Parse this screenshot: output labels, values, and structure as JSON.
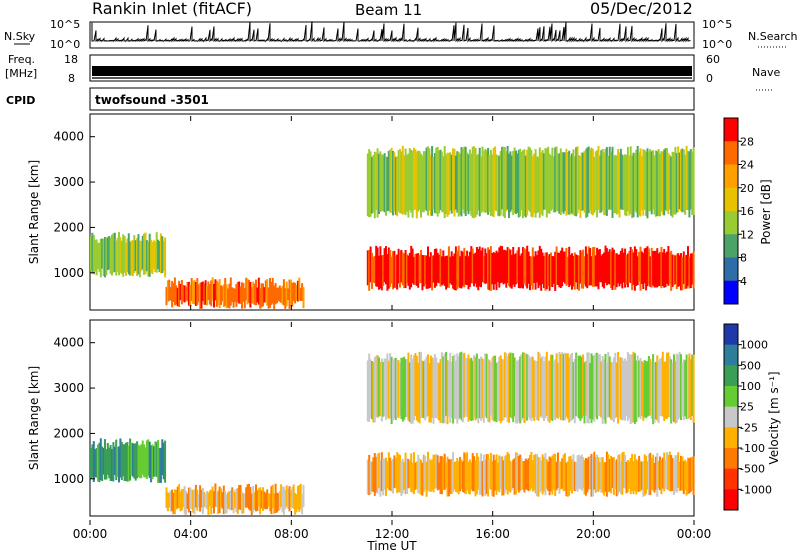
{
  "header": {
    "station": "Rankin Inlet (fitACF)",
    "beam": "Beam 11",
    "date": "05/Dec/2012"
  },
  "nsky_panel": {
    "left_label": "N.Sky",
    "right_label": "N.Search",
    "left_ticks": [
      "10^5",
      "10^0"
    ],
    "right_ticks": [
      "10^5",
      "10^0"
    ]
  },
  "freq_panel": {
    "left_label_1": "Freq.",
    "left_label_2": "[MHz]",
    "right_label": "Nave",
    "left_ticks": [
      "18",
      "8"
    ],
    "right_ticks": [
      "60",
      "0"
    ]
  },
  "cpid_panel": {
    "label": "CPID",
    "text": "twofsound -3501"
  },
  "chart_data": [
    {
      "type": "heatmap",
      "title": "Power",
      "ylabel": "Slant Range [km]",
      "xlabel": "",
      "colorbar_label": "Power [dB]",
      "colorbar_ticks": [
        "28",
        "24",
        "20",
        "16",
        "12",
        "8",
        "4"
      ],
      "colorbar_colors": [
        "#ff0000",
        "#ff6a00",
        "#ff9f00",
        "#e6c200",
        "#99cc33",
        "#4aa46a",
        "#2e6da8",
        "#0000ff"
      ],
      "yticks": [
        "4000",
        "3000",
        "2000",
        "1000"
      ],
      "yrange_km": [
        180,
        4500
      ],
      "regions": [
        {
          "t0": 0.0,
          "t1": 3.0,
          "r0": 900,
          "r1": 1900,
          "dB": 12
        },
        {
          "t0": 3.0,
          "t1": 8.5,
          "r0": 200,
          "r1": 900,
          "dB": 24
        },
        {
          "t0": 11.0,
          "t1": 24.0,
          "r0": 600,
          "r1": 1600,
          "dB": 28
        },
        {
          "t0": 11.0,
          "t1": 24.0,
          "r0": 2200,
          "r1": 3800,
          "dB": 12
        }
      ]
    },
    {
      "type": "heatmap",
      "title": "Velocity",
      "ylabel": "Slant Range [km]",
      "xlabel": "Time UT",
      "colorbar_label": "Velocity [m s⁻¹]",
      "colorbar_ticks": [
        "1000",
        "500",
        "100",
        "25",
        "-25",
        "-100",
        "-500",
        "-1000"
      ],
      "colorbar_colors": [
        "#1f3aa8",
        "#2e7d9a",
        "#3a9f56",
        "#66cc33",
        "#c8c8c8",
        "#ffb000",
        "#ff7a00",
        "#ff3300",
        "#ff0000"
      ],
      "yticks": [
        "4000",
        "3000",
        "2000",
        "1000"
      ],
      "yrange_km": [
        180,
        4500
      ],
      "regions": [
        {
          "t0": 0.0,
          "t1": 3.0,
          "r0": 900,
          "r1": 1900,
          "ms": 100
        },
        {
          "t0": 3.0,
          "t1": 8.5,
          "r0": 200,
          "r1": 900,
          "ms": -100
        },
        {
          "t0": 11.0,
          "t1": 24.0,
          "r0": 600,
          "r1": 1600,
          "ms": -100
        },
        {
          "t0": 11.0,
          "t1": 24.0,
          "r0": 2200,
          "r1": 3800,
          "ms": -25
        }
      ]
    }
  ],
  "xaxis": {
    "ticks": [
      "00:00",
      "04:00",
      "08:00",
      "12:00",
      "16:00",
      "20:00",
      "00:00"
    ],
    "label": "Time UT"
  }
}
